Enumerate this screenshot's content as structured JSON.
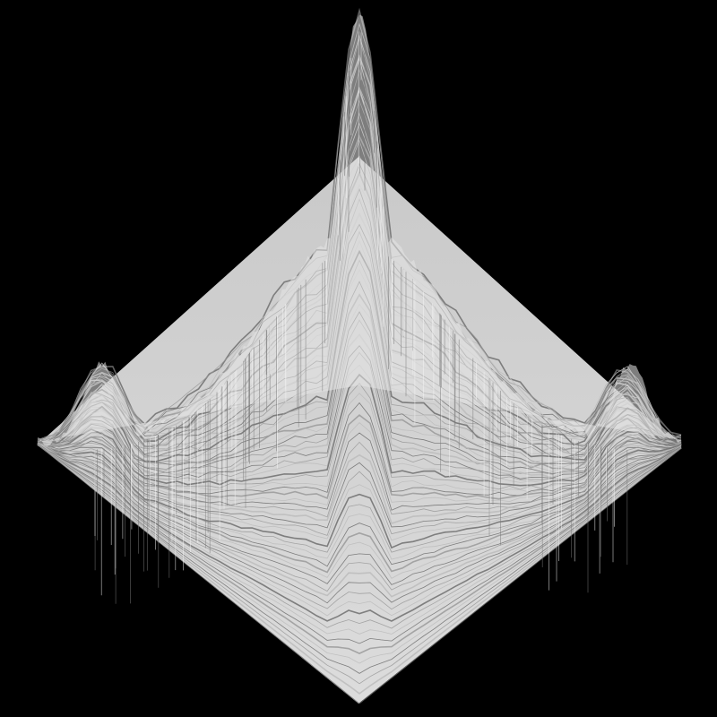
{
  "scene": {
    "subject": "terrain-heightmap-render",
    "background_color": "#000000",
    "surface_color": "#e6e6e6",
    "shadow_color": "#6e6e6e",
    "projection": "isometric-diamond",
    "features": [
      "central-peak",
      "left-ridge",
      "right-ridge",
      "flat-plain-front"
    ]
  }
}
